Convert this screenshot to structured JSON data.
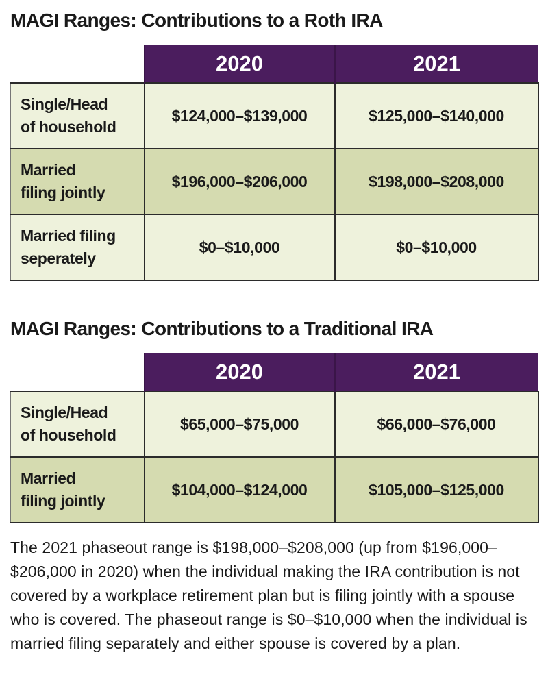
{
  "tables": [
    {
      "title": "MAGI Ranges: Contributions to a Roth IRA",
      "header": [
        "2020",
        "2021"
      ],
      "rows": [
        {
          "label": [
            "Single/Head",
            "of household"
          ],
          "values": [
            "$124,000–$139,000",
            "$125,000–$140,000"
          ]
        },
        {
          "label": [
            "Married",
            "filing jointly"
          ],
          "values": [
            "$196,000–$206,000",
            "$198,000–$208,000"
          ]
        },
        {
          "label": [
            "Married filing",
            "seperately"
          ],
          "values": [
            "$0–$10,000",
            "$0–$10,000"
          ]
        }
      ]
    },
    {
      "title": "MAGI Ranges: Contributions to a Traditional IRA",
      "header": [
        "2020",
        "2021"
      ],
      "rows": [
        {
          "label": [
            "Single/Head",
            "of household"
          ],
          "values": [
            "$65,000–$75,000",
            "$66,000–$76,000"
          ]
        },
        {
          "label": [
            "Married",
            "filing jointly"
          ],
          "values": [
            "$104,000–$124,000",
            "$105,000–$125,000"
          ]
        }
      ]
    }
  ],
  "note": "The 2021 phaseout range is $198,000–$208,000 (up from $196,000–$206,000 in 2020) when the individual making the IRA contribution is not covered by a workplace retirement plan but is filing jointly with a spouse who is covered. The phaseout range is $0–$10,000 when the individual is married filing separately and either spouse is covered by a plan."
}
